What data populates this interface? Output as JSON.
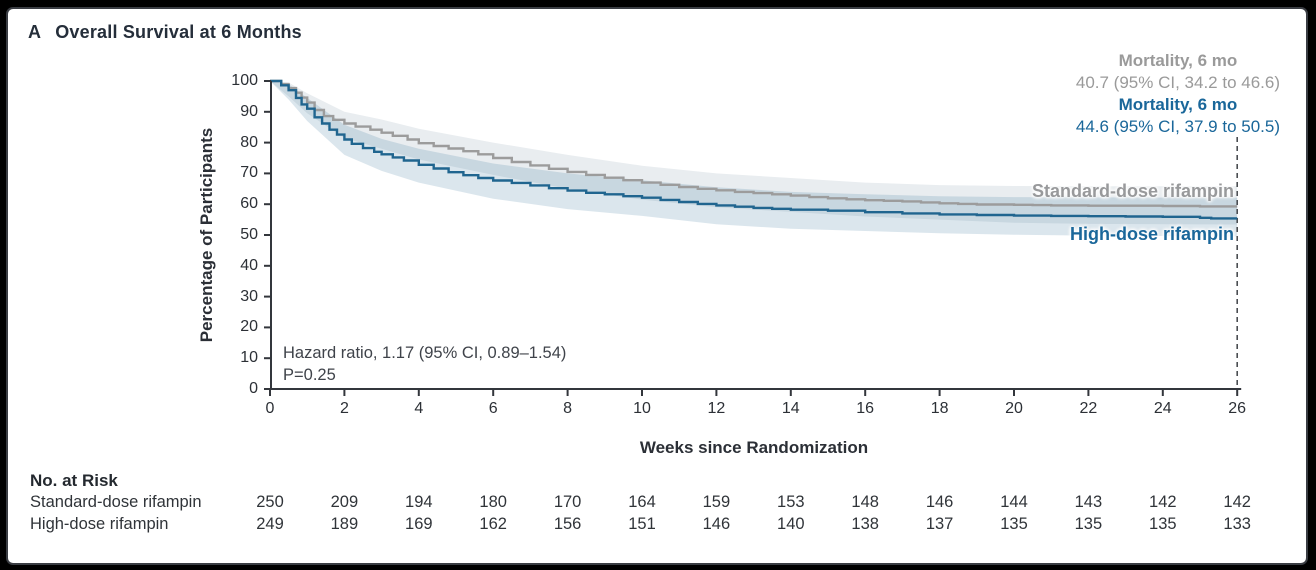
{
  "panel": {
    "label": "A",
    "title": "Overall Survival at 6 Months"
  },
  "annotations": {
    "standard_mortality_title": "Mortality, 6 mo",
    "standard_mortality_value": "40.7 (95% CI, 34.2 to 46.6)",
    "high_mortality_title": "Mortality, 6 mo",
    "high_mortality_value": "44.6 (95% CI, 37.9 to 50.5)",
    "hazard_ratio": "Hazard ratio, 1.17 (95% CI, 0.89–1.54)",
    "p_value": "P=0.25",
    "standard_curve_label": "Standard-dose rifampin",
    "high_curve_label": "High-dose rifampin"
  },
  "risk_table": {
    "title": "No. at Risk",
    "weeks": [
      0,
      2,
      4,
      6,
      8,
      10,
      12,
      14,
      16,
      18,
      20,
      22,
      24,
      26
    ],
    "rows": [
      {
        "label": "Standard-dose rifampin",
        "values": [
          250,
          209,
          194,
          180,
          170,
          164,
          159,
          153,
          148,
          146,
          144,
          143,
          142,
          142
        ]
      },
      {
        "label": "High-dose rifampin",
        "values": [
          249,
          189,
          169,
          162,
          156,
          151,
          146,
          140,
          138,
          137,
          135,
          135,
          135,
          133
        ]
      }
    ]
  },
  "colors": {
    "standard_line": "#9c9c9c",
    "standard_band": "#e9edf0",
    "high_line": "#20658f",
    "high_band": "rgba(32,101,143,0.16)",
    "axis": "#33363c",
    "dashed_reference": "#4a4d52"
  },
  "chart_data": {
    "type": "line",
    "subtype": "kaplan-meier-step",
    "title": "Overall Survival at 6 Months",
    "xlabel": "Weeks since Randomization",
    "ylabel": "Percentage of Participants",
    "xlim": [
      0,
      26
    ],
    "ylim": [
      0,
      100
    ],
    "xticks": [
      0,
      2,
      4,
      6,
      8,
      10,
      12,
      14,
      16,
      18,
      20,
      22,
      24,
      26
    ],
    "yticks": [
      0,
      10,
      20,
      30,
      40,
      50,
      60,
      70,
      80,
      90,
      100
    ],
    "grid": false,
    "legend_position": "labels-at-line-end",
    "reference_line_x": 26,
    "hazard_ratio": 1.17,
    "hazard_ratio_ci": [
      0.89,
      1.54
    ],
    "p_value": 0.25,
    "series": [
      {
        "name": "Standard-dose rifampin",
        "mortality_6mo": 40.7,
        "mortality_6mo_ci": [
          34.2,
          46.6
        ],
        "survival_26wk": 59.3,
        "steps": [
          [
            0,
            100
          ],
          [
            0.3,
            99
          ],
          [
            0.5,
            97.7
          ],
          [
            0.7,
            96.2
          ],
          [
            0.85,
            94.6
          ],
          [
            1,
            93
          ],
          [
            1.2,
            90.6
          ],
          [
            1.45,
            88.6
          ],
          [
            1.7,
            87.4
          ],
          [
            2,
            86.2
          ],
          [
            2.3,
            85.2
          ],
          [
            2.7,
            84.2
          ],
          [
            3,
            83.2
          ],
          [
            3.3,
            82.2
          ],
          [
            3.7,
            81
          ],
          [
            4,
            79.8
          ],
          [
            4.4,
            78.9
          ],
          [
            4.8,
            78.1
          ],
          [
            5.2,
            77.2
          ],
          [
            5.6,
            76.2
          ],
          [
            6,
            75
          ],
          [
            6.5,
            73.7
          ],
          [
            7,
            72.6
          ],
          [
            7.5,
            71.5
          ],
          [
            8,
            70.5
          ],
          [
            8.5,
            69.5
          ],
          [
            9,
            68.6
          ],
          [
            9.5,
            67.8
          ],
          [
            10,
            67
          ],
          [
            10.5,
            66.3
          ],
          [
            11,
            65.6
          ],
          [
            11.5,
            65
          ],
          [
            12,
            64.5
          ],
          [
            12.5,
            64
          ],
          [
            13,
            63.6
          ],
          [
            13.5,
            63.2
          ],
          [
            14,
            62.8
          ],
          [
            14.5,
            62.3
          ],
          [
            15,
            61.9
          ],
          [
            15.5,
            61.6
          ],
          [
            16,
            61.3
          ],
          [
            16.5,
            61.1
          ],
          [
            17,
            60.9
          ],
          [
            17.5,
            60.6
          ],
          [
            18,
            60.3
          ],
          [
            18.5,
            60.1
          ],
          [
            19,
            59.9
          ],
          [
            20,
            59.8
          ],
          [
            20.5,
            59.7
          ],
          [
            21,
            59.6
          ],
          [
            22,
            59.5
          ],
          [
            23,
            59.5
          ],
          [
            24,
            59.4
          ],
          [
            25,
            59.3
          ],
          [
            26,
            59.3
          ]
        ],
        "ci_upper": [
          [
            0,
            100
          ],
          [
            0.5,
            99.5
          ],
          [
            1,
            96
          ],
          [
            2,
            90
          ],
          [
            3,
            87.5
          ],
          [
            4,
            84.5
          ],
          [
            6,
            80
          ],
          [
            8,
            76
          ],
          [
            10,
            72.5
          ],
          [
            12,
            70
          ],
          [
            14,
            68.5
          ],
          [
            16,
            67
          ],
          [
            18,
            66.2
          ],
          [
            20,
            65.9
          ],
          [
            22,
            65.8
          ],
          [
            26,
            65.8
          ]
        ],
        "ci_lower": [
          [
            0,
            100
          ],
          [
            0.5,
            95
          ],
          [
            1,
            89.5
          ],
          [
            2,
            81.5
          ],
          [
            3,
            78
          ],
          [
            4,
            74.5
          ],
          [
            6,
            69.5
          ],
          [
            8,
            65
          ],
          [
            10,
            61.5
          ],
          [
            12,
            59
          ],
          [
            14,
            57.5
          ],
          [
            16,
            56
          ],
          [
            18,
            55
          ],
          [
            20,
            54
          ],
          [
            22,
            53.6
          ],
          [
            26,
            53.4
          ]
        ]
      },
      {
        "name": "High-dose rifampin",
        "mortality_6mo": 44.6,
        "mortality_6mo_ci": [
          37.9,
          50.5
        ],
        "survival_26wk": 55.4,
        "steps": [
          [
            0,
            100
          ],
          [
            0.3,
            98.6
          ],
          [
            0.5,
            97
          ],
          [
            0.7,
            94.5
          ],
          [
            0.85,
            92.4
          ],
          [
            1,
            91
          ],
          [
            1.2,
            88.2
          ],
          [
            1.4,
            86.2
          ],
          [
            1.6,
            84.2
          ],
          [
            1.8,
            82.6
          ],
          [
            2,
            81
          ],
          [
            2.2,
            79.6
          ],
          [
            2.5,
            78.2
          ],
          [
            2.8,
            77
          ],
          [
            3,
            76.2
          ],
          [
            3.3,
            75.2
          ],
          [
            3.6,
            74.2
          ],
          [
            4,
            72.8
          ],
          [
            4.4,
            71.6
          ],
          [
            4.8,
            70.4
          ],
          [
            5.2,
            69.4
          ],
          [
            5.6,
            68.5
          ],
          [
            6,
            67.7
          ],
          [
            6.5,
            66.9
          ],
          [
            7,
            66.1
          ],
          [
            7.5,
            65.2
          ],
          [
            8,
            64.4
          ],
          [
            8.5,
            63.7
          ],
          [
            9,
            63.2
          ],
          [
            9.5,
            62.6
          ],
          [
            10,
            62.1
          ],
          [
            10.5,
            61.4
          ],
          [
            11,
            60.7
          ],
          [
            11.5,
            60.1
          ],
          [
            12,
            59.6
          ],
          [
            12.5,
            59.2
          ],
          [
            13,
            58.8
          ],
          [
            13.5,
            58.5
          ],
          [
            14,
            58.2
          ],
          [
            15,
            57.9
          ],
          [
            16,
            57.4
          ],
          [
            17,
            57
          ],
          [
            18,
            56.7
          ],
          [
            19,
            56.5
          ],
          [
            20,
            56.3
          ],
          [
            21,
            56.2
          ],
          [
            22,
            56.1
          ],
          [
            23,
            56
          ],
          [
            24,
            55.9
          ],
          [
            25,
            55.6
          ],
          [
            25.3,
            55.4
          ],
          [
            26,
            55.4
          ]
        ],
        "ci_upper": [
          [
            0,
            100
          ],
          [
            0.5,
            99
          ],
          [
            1,
            94.5
          ],
          [
            2,
            85.8
          ],
          [
            3,
            81.2
          ],
          [
            4,
            78
          ],
          [
            6,
            73.2
          ],
          [
            8,
            70
          ],
          [
            10,
            67.8
          ],
          [
            12,
            65.5
          ],
          [
            14,
            64
          ],
          [
            16,
            63.2
          ],
          [
            18,
            62.6
          ],
          [
            20,
            62.3
          ],
          [
            22,
            62.2
          ],
          [
            26,
            62.1
          ]
        ],
        "ci_lower": [
          [
            0,
            100
          ],
          [
            0.5,
            94
          ],
          [
            1,
            87
          ],
          [
            2,
            76
          ],
          [
            3,
            70.8
          ],
          [
            4,
            67
          ],
          [
            6,
            61.8
          ],
          [
            8,
            58.4
          ],
          [
            10,
            56.2
          ],
          [
            12,
            53.5
          ],
          [
            14,
            52
          ],
          [
            16,
            51.3
          ],
          [
            18,
            50.6
          ],
          [
            20,
            50.1
          ],
          [
            22,
            49.8
          ],
          [
            26,
            49.5
          ]
        ]
      }
    ]
  }
}
